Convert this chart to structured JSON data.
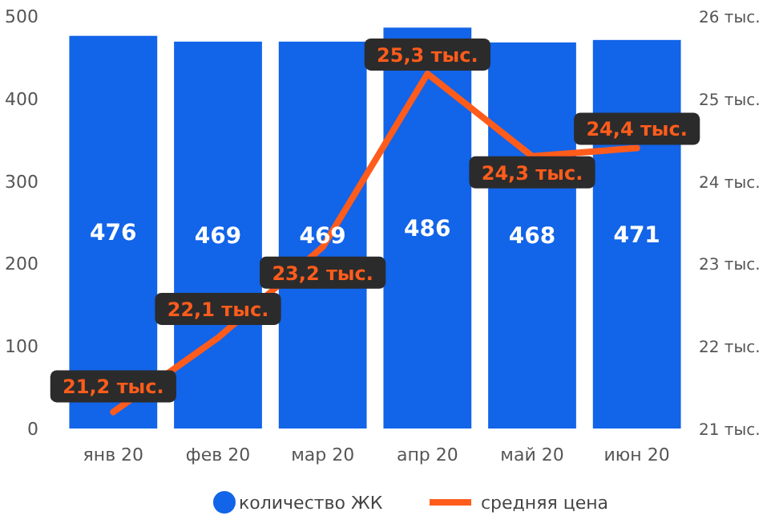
{
  "chart_data": {
    "type": "bar",
    "categories": [
      "янв 20",
      "фев 20",
      "мар 20",
      "апр 20",
      "май 20",
      "июн 20"
    ],
    "series": [
      {
        "name": "количество ЖК",
        "color": "#1264e8",
        "values": [
          476,
          469,
          469,
          486,
          468,
          471
        ],
        "value_labels": [
          "476",
          "469",
          "469",
          "486",
          "468",
          "471"
        ]
      },
      {
        "name": "средняя цена",
        "type": "line",
        "axis": "y2",
        "color": "#ff5c1c",
        "values": [
          21.2,
          22.1,
          23.2,
          25.3,
          24.3,
          24.4
        ],
        "value_labels": [
          "21,2 тыс.",
          "22,1 тыс.",
          "23,2 тыс.",
          "25,3 тыс.",
          "24,3 тыс.",
          "24,4 тыс."
        ]
      }
    ],
    "ylim": [
      0,
      500
    ],
    "yticks": [
      0,
      100,
      200,
      300,
      400,
      500
    ],
    "y2lim": [
      21,
      26
    ],
    "y2ticks": [
      {
        "value": 21,
        "label": "21 тыс."
      },
      {
        "value": 22,
        "label": "22 тыс."
      },
      {
        "value": 23,
        "label": "23 тыс."
      },
      {
        "value": 24,
        "label": "24 тыс."
      },
      {
        "value": 25,
        "label": "25 тыс."
      },
      {
        "value": 26,
        "label": "26 тыс."
      }
    ],
    "grid": false,
    "legend": "bottom",
    "marker": "none",
    "line_style": "solid"
  }
}
